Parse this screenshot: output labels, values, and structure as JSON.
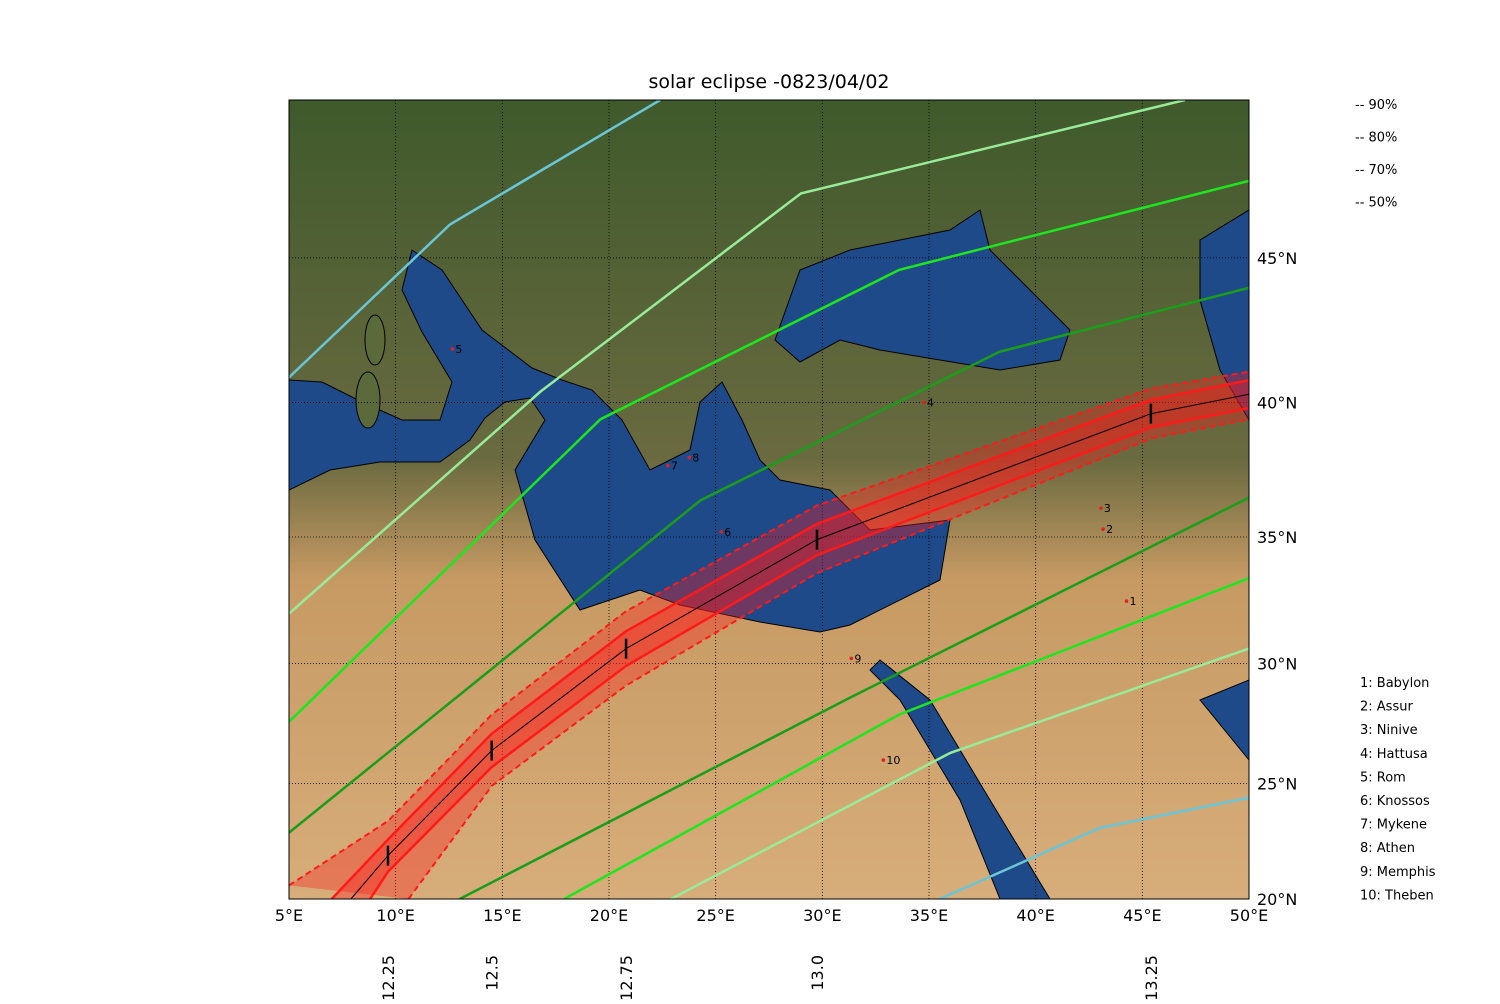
{
  "chart_data": {
    "type": "map",
    "projection": "mercator",
    "title": "solar eclipse -0823/04/02",
    "xlim": [
      5,
      50
    ],
    "ylim": [
      20,
      50
    ],
    "xticks": [
      {
        "value": 5,
        "label": "5°E"
      },
      {
        "value": 10,
        "label": "10°E"
      },
      {
        "value": 15,
        "label": "15°E"
      },
      {
        "value": 20,
        "label": "20°E"
      },
      {
        "value": 25,
        "label": "25°E"
      },
      {
        "value": 30,
        "label": "30°E"
      },
      {
        "value": 35,
        "label": "35°E"
      },
      {
        "value": 40,
        "label": "40°E"
      },
      {
        "value": 45,
        "label": "45°E"
      },
      {
        "value": 50,
        "label": "50°E"
      }
    ],
    "yticks": [
      {
        "value": 20,
        "label": "20°N"
      },
      {
        "value": 25,
        "label": "25°N"
      },
      {
        "value": 30,
        "label": "30°N"
      },
      {
        "value": 35,
        "label": "35°N"
      },
      {
        "value": 40,
        "label": "40°N"
      },
      {
        "value": 45,
        "label": "45°N"
      }
    ],
    "grid": true,
    "series": [
      {
        "name": "-- 90%",
        "color": "#1a9e1a",
        "lines": [
          {
            "lon": [
              5,
              24.3,
              38.3,
              50
            ],
            "lat": [
              22.9,
              36.4,
              41.8,
              44.0
            ]
          },
          {
            "lon": [
              13.0,
              31.3,
              50
            ],
            "lat": [
              20,
              28.6,
              36.5
            ]
          }
        ]
      },
      {
        "name": "-- 80%",
        "color": "#1ee61e",
        "lines": [
          {
            "lon": [
              5,
              19.6,
              33.6,
              50
            ],
            "lat": [
              27.6,
              39.4,
              44.6,
              47.5
            ]
          },
          {
            "lon": [
              17.9,
              33.6,
              50
            ],
            "lat": [
              20,
              27.9,
              33.4
            ]
          }
        ]
      },
      {
        "name": "-- 70%",
        "color": "#98ec98",
        "lines": [
          {
            "lon": [
              5,
              16.8,
              29.0,
              47.0
            ],
            "lat": [
              32.0,
              40.4,
              47.1,
              50
            ]
          },
          {
            "lon": [
              22.9,
              36.0,
              50
            ],
            "lat": [
              20,
              26.3,
              30.6
            ]
          }
        ]
      },
      {
        "name": "-- 50%",
        "color": "#6ac6d6",
        "lines": [
          {
            "lon": [
              5,
              12.55,
              22.4
            ],
            "lat": [
              40.9,
              46.1,
              50
            ]
          },
          {
            "lon": [
              35.5,
              43,
              50
            ],
            "lat": [
              20,
              23.1,
              24.4
            ]
          }
        ]
      }
    ],
    "path": {
      "color": "#ff1a1a",
      "central": {
        "lon": [
          7.9,
          9.64,
          14.5,
          20.8,
          29.75,
          45.4,
          50
        ],
        "lat": [
          20,
          21.9,
          26.4,
          30.6,
          34.9,
          39.6,
          40.3
        ]
      },
      "inner": [
        {
          "lon": [
            7.0,
            9.64,
            14.5,
            20.8,
            29.75,
            45.4,
            50
          ],
          "lat": [
            20,
            22.6,
            27.1,
            31.3,
            35.5,
            40.1,
            40.8
          ]
        },
        {
          "lon": [
            8.8,
            9.64,
            14.5,
            20.8,
            29.75,
            45.4,
            50
          ],
          "lat": [
            20,
            21.2,
            25.7,
            29.9,
            34.3,
            39.1,
            39.8
          ]
        }
      ],
      "outer": [
        {
          "lon": [
            5,
            9.64,
            14.5,
            20.8,
            29.75,
            45.4,
            50
          ],
          "lat": [
            20.6,
            23.4,
            27.9,
            32.1,
            36.2,
            40.5,
            41.1
          ]
        },
        {
          "lon": [
            10.6,
            14.5,
            20.8,
            29.75,
            45.4,
            50
          ],
          "lat": [
            20,
            24.9,
            29.1,
            33.6,
            38.7,
            39.4
          ]
        }
      ]
    },
    "time_marks": {
      "lon": [
        9.64,
        14.5,
        20.8,
        29.75,
        45.4
      ],
      "lat": [
        21.9,
        26.4,
        30.6,
        34.9,
        39.6
      ],
      "labels": [
        12.25,
        12.5,
        12.75,
        {
          "value": 13,
          "label": "13.0"
        },
        13.25
      ]
    },
    "places": [
      {
        "marker": "1",
        "label": "1: Babylon",
        "lon": 44.4,
        "lat": 32.5
      },
      {
        "marker": "2",
        "label": "2: Assur",
        "lon": 43.3,
        "lat": 35.3
      },
      {
        "marker": "3",
        "label": "3: Ninive",
        "lon": 43.2,
        "lat": 36.1
      },
      {
        "marker": "4",
        "label": "4: Hattusa",
        "lon": 34.9,
        "lat": 40.0
      },
      {
        "marker": "5",
        "label": "5: Rom",
        "lon": 12.8,
        "lat": 41.9
      },
      {
        "marker": "6",
        "label": "6: Knossos",
        "lon": 25.4,
        "lat": 35.2
      },
      {
        "marker": "7",
        "label": "7: Mykene",
        "lon": 22.9,
        "lat": 37.7
      },
      {
        "marker": "8",
        "label": "8: Athen",
        "lon": 23.9,
        "lat": 38.0
      },
      {
        "marker": "9",
        "label": "9: Memphis",
        "lon": 31.5,
        "lat": 30.2
      },
      {
        "marker": "10",
        "label": "10: Theben",
        "lon": 33.0,
        "lat": 26.0
      }
    ]
  }
}
